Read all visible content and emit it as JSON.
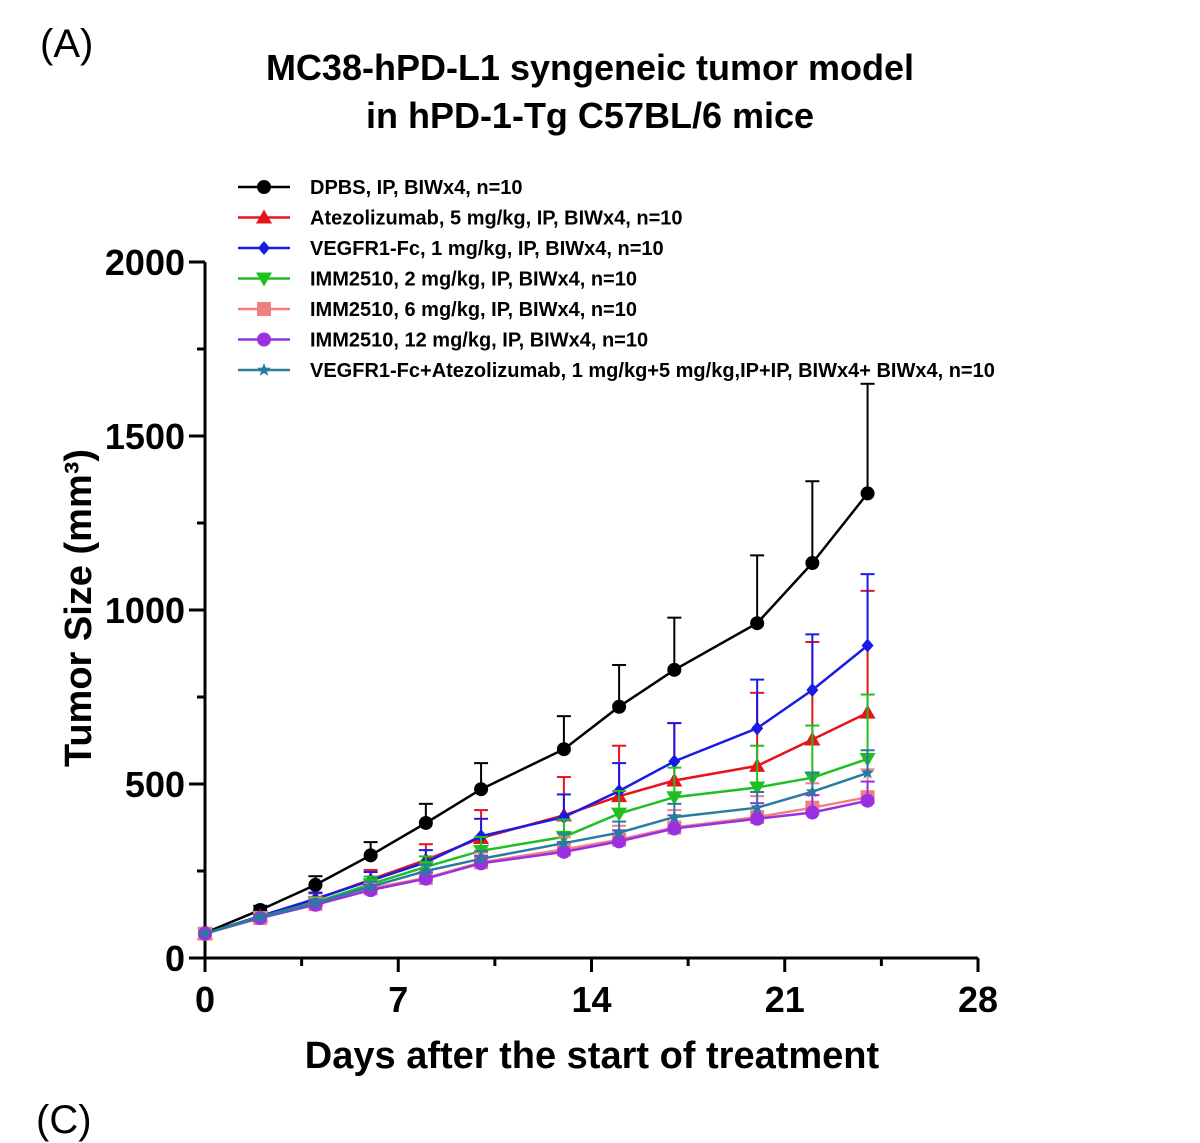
{
  "panel_label": "(A)",
  "next_panel_label": "(C)",
  "chart_data": {
    "type": "line",
    "title": [
      "MC38-hPD-L1 syngeneic tumor model",
      "in hPD-1-Tg C57BL/6 mice"
    ],
    "xlabel": "Days after the start of treatment",
    "ylabel": "Tumor Size (mm³)",
    "xlim": [
      0,
      28
    ],
    "ylim": [
      0,
      2000
    ],
    "xticks": [
      0,
      7,
      14,
      21,
      28
    ],
    "yticks": [
      0,
      500,
      1000,
      1500,
      2000
    ],
    "x": [
      0,
      2,
      4,
      6,
      8,
      10,
      13,
      15,
      17,
      20,
      22,
      24
    ],
    "series": [
      {
        "name": "DPBS,  IP, BIWx4, n=10",
        "color": "#000000",
        "marker": "circle",
        "values": [
          72,
          138,
          210,
          295,
          388,
          485,
          600,
          722,
          828,
          962,
          1135,
          1335
        ],
        "errors": [
          6,
          12,
          25,
          38,
          55,
          75,
          95,
          120,
          150,
          195,
          235,
          315
        ]
      },
      {
        "name": "Atezolizumab, 5 mg/kg,  IP, BIWx4, n=10",
        "color": "#e8141b",
        "marker": "triangle-up",
        "values": [
          70,
          120,
          168,
          225,
          282,
          345,
          410,
          465,
          510,
          552,
          628,
          705
        ],
        "errors": [
          5,
          10,
          18,
          28,
          45,
          80,
          110,
          145,
          165,
          210,
          280,
          350
        ]
      },
      {
        "name": "VEGFR1-Fc, 1 mg/kg,  IP, BIWx4, n=10",
        "color": "#1a1ae6",
        "marker": "diamond",
        "values": [
          70,
          120,
          170,
          222,
          275,
          350,
          405,
          480,
          565,
          660,
          770,
          898
        ],
        "errors": [
          5,
          10,
          18,
          25,
          35,
          50,
          65,
          80,
          110,
          140,
          160,
          205
        ]
      },
      {
        "name": "IMM2510, 2 mg/kg,  IP, BIWx4, n=10",
        "color": "#1fbf1f",
        "marker": "triangle-down",
        "values": [
          70,
          118,
          160,
          212,
          262,
          308,
          348,
          415,
          462,
          490,
          518,
          572
        ],
        "errors": [
          5,
          9,
          15,
          22,
          30,
          40,
          50,
          65,
          85,
          120,
          150,
          185
        ]
      },
      {
        "name": "IMM2510, 6 mg/kg,  IP, BIWx4, n=10",
        "color": "#f08080",
        "marker": "square",
        "values": [
          70,
          115,
          155,
          200,
          230,
          275,
          312,
          340,
          375,
          405,
          432,
          462
        ],
        "errors": [
          4,
          8,
          12,
          18,
          22,
          28,
          35,
          40,
          50,
          60,
          70,
          80
        ]
      },
      {
        "name": "IMM2510, 12 mg/kg,  IP, BIWx4, n=10",
        "color": "#9b30e0",
        "marker": "circle",
        "values": [
          70,
          115,
          153,
          195,
          228,
          272,
          305,
          335,
          372,
          400,
          418,
          452
        ],
        "errors": [
          4,
          7,
          10,
          15,
          18,
          22,
          28,
          32,
          38,
          45,
          50,
          55
        ]
      },
      {
        "name": "VEGFR1-Fc+Atezolizumab, 1 mg/kg+5 mg/kg,IP+IP, BIWx4+ BIWx4, n=10",
        "color": "#2b7ba0",
        "marker": "star",
        "values": [
          70,
          117,
          158,
          205,
          250,
          285,
          330,
          360,
          405,
          432,
          478,
          532
        ],
        "errors": [
          4,
          7,
          10,
          14,
          18,
          22,
          28,
          32,
          38,
          45,
          55,
          65
        ]
      }
    ]
  }
}
